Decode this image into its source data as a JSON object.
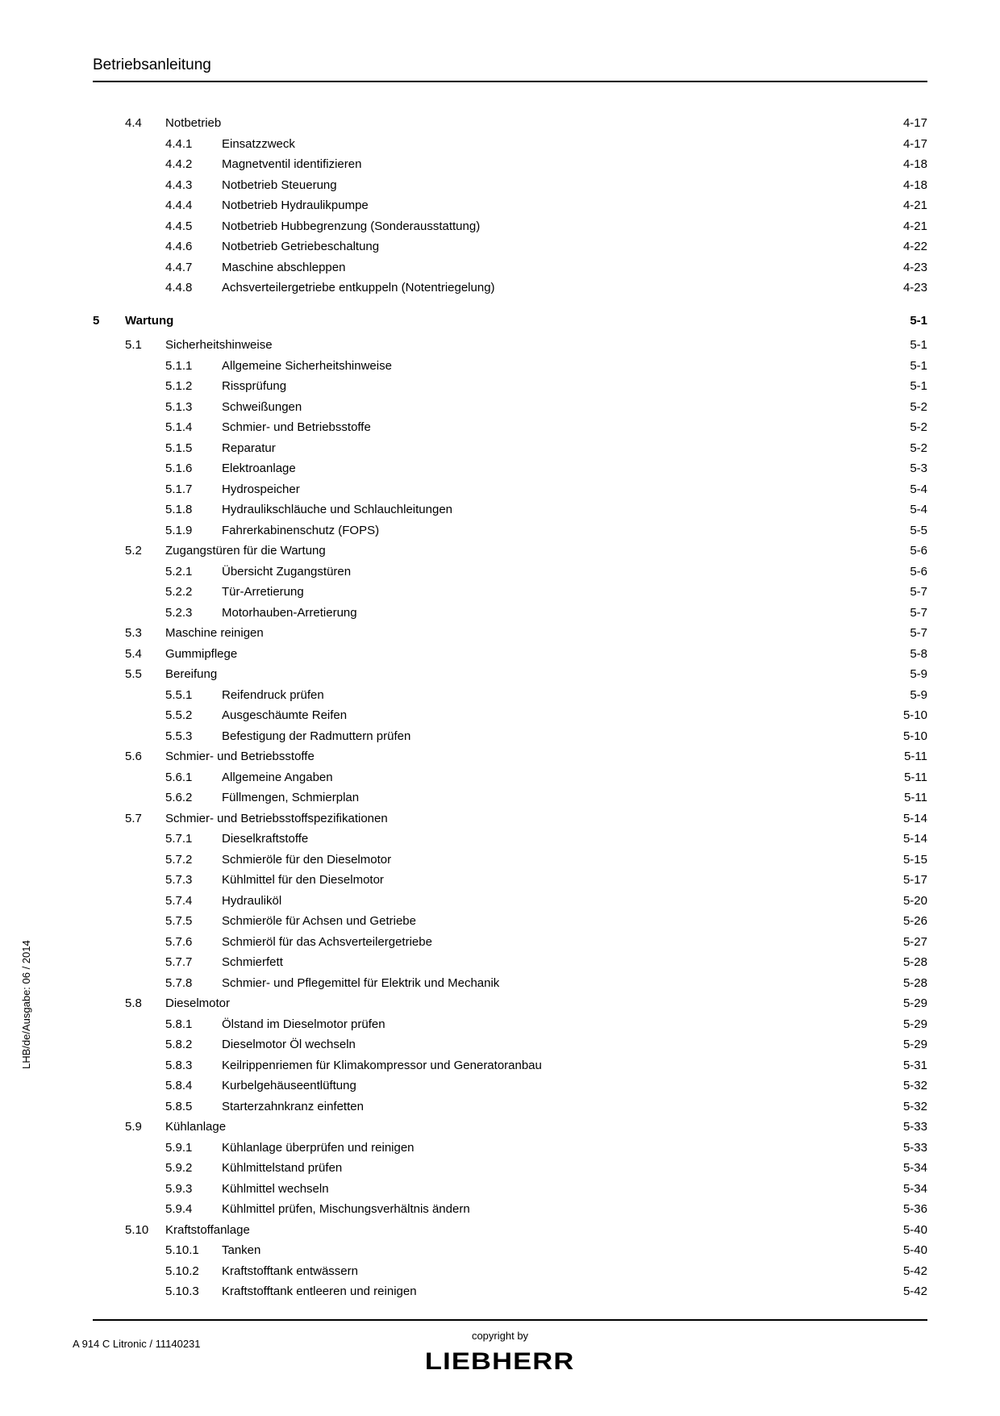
{
  "header": {
    "title": "Betriebsanleitung"
  },
  "sideText": "LHB/de/Ausgabe: 06 / 2014",
  "footer": {
    "copyright": "copyright by",
    "logo": "LIEBHERR",
    "docRef": "A 914 C Litronic / 11140231"
  },
  "toc": [
    {
      "lvl": "sec",
      "num": "4.4",
      "title": "Notbetrieb",
      "page": "4-17"
    },
    {
      "lvl": "sub",
      "num": "4.4.1",
      "title": "Einsatzzweck",
      "page": "4-17"
    },
    {
      "lvl": "sub",
      "num": "4.4.2",
      "title": "Magnetventil identifizieren",
      "page": "4-18"
    },
    {
      "lvl": "sub",
      "num": "4.4.3",
      "title": "Notbetrieb Steuerung",
      "page": "4-18"
    },
    {
      "lvl": "sub",
      "num": "4.4.4",
      "title": "Notbetrieb Hydraulikpumpe",
      "page": "4-21"
    },
    {
      "lvl": "sub",
      "num": "4.4.5",
      "title": "Notbetrieb Hubbegrenzung (Sonderausstattung)",
      "page": "4-21"
    },
    {
      "lvl": "sub",
      "num": "4.4.6",
      "title": "Notbetrieb Getriebeschaltung",
      "page": "4-22"
    },
    {
      "lvl": "sub",
      "num": "4.4.7",
      "title": "Maschine abschleppen",
      "page": "4-23"
    },
    {
      "lvl": "sub",
      "num": "4.4.8",
      "title": "Achsverteilergetriebe entkuppeln (Notentriegelung)",
      "page": "4-23"
    },
    {
      "lvl": "ch",
      "num": "5",
      "title": "Wartung",
      "page": "5-1"
    },
    {
      "lvl": "sec",
      "num": "5.1",
      "title": "Sicherheitshinweise",
      "page": "5-1"
    },
    {
      "lvl": "sub",
      "num": "5.1.1",
      "title": "Allgemeine Sicherheitshinweise",
      "page": "5-1"
    },
    {
      "lvl": "sub",
      "num": "5.1.2",
      "title": "Rissprüfung",
      "page": "5-1"
    },
    {
      "lvl": "sub",
      "num": "5.1.3",
      "title": "Schweißungen",
      "page": "5-2"
    },
    {
      "lvl": "sub",
      "num": "5.1.4",
      "title": "Schmier- und Betriebsstoffe",
      "page": "5-2"
    },
    {
      "lvl": "sub",
      "num": "5.1.5",
      "title": "Reparatur",
      "page": "5-2"
    },
    {
      "lvl": "sub",
      "num": "5.1.6",
      "title": "Elektroanlage",
      "page": "5-3"
    },
    {
      "lvl": "sub",
      "num": "5.1.7",
      "title": "Hydrospeicher",
      "page": "5-4"
    },
    {
      "lvl": "sub",
      "num": "5.1.8",
      "title": "Hydraulikschläuche und Schlauchleitungen",
      "page": "5-4"
    },
    {
      "lvl": "sub",
      "num": "5.1.9",
      "title": "Fahrerkabinenschutz (FOPS)",
      "page": "5-5"
    },
    {
      "lvl": "sec",
      "num": "5.2",
      "title": "Zugangstüren für die Wartung",
      "page": "5-6"
    },
    {
      "lvl": "sub",
      "num": "5.2.1",
      "title": "Übersicht Zugangstüren",
      "page": "5-6"
    },
    {
      "lvl": "sub",
      "num": "5.2.2",
      "title": "Tür-Arretierung",
      "page": "5-7"
    },
    {
      "lvl": "sub",
      "num": "5.2.3",
      "title": "Motorhauben-Arretierung",
      "page": "5-7"
    },
    {
      "lvl": "sec",
      "num": "5.3",
      "title": "Maschine reinigen",
      "page": "5-7"
    },
    {
      "lvl": "sec",
      "num": "5.4",
      "title": "Gummipflege",
      "page": "5-8"
    },
    {
      "lvl": "sec",
      "num": "5.5",
      "title": "Bereifung",
      "page": "5-9"
    },
    {
      "lvl": "sub",
      "num": "5.5.1",
      "title": "Reifendruck prüfen",
      "page": "5-9"
    },
    {
      "lvl": "sub",
      "num": "5.5.2",
      "title": "Ausgeschäumte Reifen",
      "page": "5-10"
    },
    {
      "lvl": "sub",
      "num": "5.5.3",
      "title": "Befestigung der Radmuttern prüfen",
      "page": "5-10"
    },
    {
      "lvl": "sec",
      "num": "5.6",
      "title": "Schmier- und Betriebsstoffe",
      "page": "5-11"
    },
    {
      "lvl": "sub",
      "num": "5.6.1",
      "title": "Allgemeine Angaben",
      "page": "5-11"
    },
    {
      "lvl": "sub",
      "num": "5.6.2",
      "title": "Füllmengen, Schmierplan",
      "page": "5-11"
    },
    {
      "lvl": "sec",
      "num": "5.7",
      "title": "Schmier- und Betriebsstoffspezifikationen",
      "page": "5-14"
    },
    {
      "lvl": "sub",
      "num": "5.7.1",
      "title": "Dieselkraftstoffe",
      "page": "5-14"
    },
    {
      "lvl": "sub",
      "num": "5.7.2",
      "title": "Schmieröle für den Dieselmotor",
      "page": "5-15"
    },
    {
      "lvl": "sub",
      "num": "5.7.3",
      "title": "Kühlmittel für den Dieselmotor",
      "page": "5-17"
    },
    {
      "lvl": "sub",
      "num": "5.7.4",
      "title": "Hydrauliköl",
      "page": "5-20"
    },
    {
      "lvl": "sub",
      "num": "5.7.5",
      "title": "Schmieröle für Achsen und Getriebe",
      "page": "5-26"
    },
    {
      "lvl": "sub",
      "num": "5.7.6",
      "title": "Schmieröl für das Achsverteilergetriebe",
      "page": "5-27"
    },
    {
      "lvl": "sub",
      "num": "5.7.7",
      "title": "Schmierfett",
      "page": "5-28"
    },
    {
      "lvl": "sub",
      "num": "5.7.8",
      "title": "Schmier- und Pflegemittel für Elektrik und Mechanik",
      "page": "5-28"
    },
    {
      "lvl": "sec",
      "num": "5.8",
      "title": "Dieselmotor",
      "page": "5-29"
    },
    {
      "lvl": "sub",
      "num": "5.8.1",
      "title": "Ölstand im Dieselmotor prüfen",
      "page": "5-29"
    },
    {
      "lvl": "sub",
      "num": "5.8.2",
      "title": "Dieselmotor Öl wechseln",
      "page": "5-29"
    },
    {
      "lvl": "sub",
      "num": "5.8.3",
      "title": "Keilrippenriemen für Klimakompressor und Generatoranbau",
      "page": "5-31"
    },
    {
      "lvl": "sub",
      "num": "5.8.4",
      "title": "Kurbelgehäuseentlüftung",
      "page": "5-32"
    },
    {
      "lvl": "sub",
      "num": "5.8.5",
      "title": "Starterzahnkranz einfetten",
      "page": "5-32"
    },
    {
      "lvl": "sec",
      "num": "5.9",
      "title": "Kühlanlage",
      "page": "5-33"
    },
    {
      "lvl": "sub",
      "num": "5.9.1",
      "title": "Kühlanlage überprüfen und reinigen",
      "page": "5-33"
    },
    {
      "lvl": "sub",
      "num": "5.9.2",
      "title": "Kühlmittelstand prüfen",
      "page": "5-34"
    },
    {
      "lvl": "sub",
      "num": "5.9.3",
      "title": "Kühlmittel wechseln",
      "page": "5-34"
    },
    {
      "lvl": "sub",
      "num": "5.9.4",
      "title": "Kühlmittel prüfen, Mischungsverhältnis ändern",
      "page": "5-36"
    },
    {
      "lvl": "sec",
      "num": "5.10",
      "title": "Kraftstoffanlage",
      "page": "5-40"
    },
    {
      "lvl": "sub",
      "num": "5.10.1",
      "title": "Tanken",
      "page": "5-40"
    },
    {
      "lvl": "sub",
      "num": "5.10.2",
      "title": "Kraftstofftank entwässern",
      "page": "5-42"
    },
    {
      "lvl": "sub",
      "num": "5.10.3",
      "title": "Kraftstofftank entleeren und reinigen",
      "page": "5-42"
    }
  ]
}
